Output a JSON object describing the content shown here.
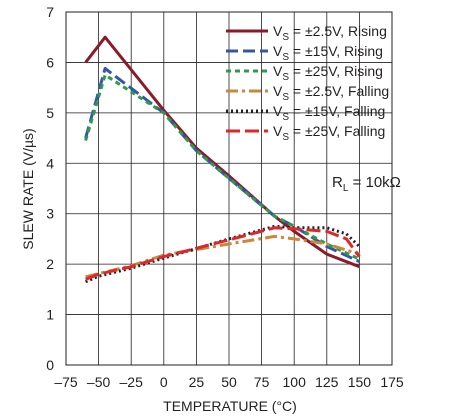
{
  "chart_data": {
    "type": "line",
    "xlabel": "TEMPERATURE (°C)",
    "ylabel": "SLEW RATE (V/µs)",
    "xlim": [
      -75,
      175
    ],
    "ylim": [
      0,
      7
    ],
    "xticks": [
      -75,
      -50,
      -25,
      0,
      25,
      50,
      75,
      100,
      125,
      150,
      175
    ],
    "yticks": [
      0,
      1,
      2,
      3,
      4,
      5,
      6,
      7
    ],
    "x_tick_labels": [
      "–75",
      "–50",
      "–25",
      "0",
      "25",
      "50",
      "75",
      "100",
      "125",
      "150",
      "175"
    ],
    "y_tick_labels": [
      "0",
      "1",
      "2",
      "3",
      "4",
      "5",
      "6",
      "7"
    ],
    "grid": true,
    "legend_position": "top-right",
    "annotation": {
      "prefix": "R",
      "sub": "L",
      "suffix": " = 10kΩ"
    },
    "series": [
      {
        "name": "VS = ±2.5V, Rising",
        "label": {
          "pre": "V",
          "sub": "S",
          "post": " = ±2.5V, Rising"
        },
        "color": "#8b1a2b",
        "dash": "",
        "width": 3,
        "x": [
          -60,
          -45,
          0,
          25,
          50,
          85,
          100,
          125,
          150
        ],
        "y": [
          6.0,
          6.5,
          5.05,
          4.3,
          3.75,
          2.95,
          2.65,
          2.2,
          1.95
        ]
      },
      {
        "name": "VS = ±15V, Rising",
        "label": {
          "pre": "V",
          "sub": "S",
          "post": " = ±15V, Rising"
        },
        "color": "#3555a8",
        "dash": "12,5",
        "width": 3,
        "x": [
          -60,
          -45,
          0,
          25,
          50,
          85,
          100,
          125,
          150
        ],
        "y": [
          4.5,
          5.88,
          5.0,
          4.25,
          3.7,
          2.95,
          2.75,
          2.35,
          2.05
        ]
      },
      {
        "name": "VS = ±25V, Rising",
        "label": {
          "pre": "V",
          "sub": "S",
          "post": " = ±25V, Rising"
        },
        "color": "#2e9b48",
        "dash": "5,4",
        "width": 3,
        "x": [
          -60,
          -45,
          0,
          25,
          50,
          85,
          100,
          125,
          150
        ],
        "y": [
          4.45,
          5.75,
          5.0,
          4.25,
          3.7,
          2.95,
          2.75,
          2.4,
          2.1
        ]
      },
      {
        "name": "VS = ±2.5V, Falling",
        "label": {
          "pre": "V",
          "sub": "S",
          "post": " = ±2.5V, Falling"
        },
        "color": "#c8893a",
        "dash": "12,4,3,4",
        "width": 3,
        "x": [
          -60,
          -25,
          0,
          50,
          85,
          100,
          125,
          150
        ],
        "y": [
          1.75,
          1.97,
          2.18,
          2.4,
          2.55,
          2.5,
          2.4,
          2.2
        ]
      },
      {
        "name": "VS = ±15V, Falling",
        "label": {
          "pre": "V",
          "sub": "S",
          "post": " = ±15V, Falling"
        },
        "color": "#231f20",
        "dash": "2,3",
        "width": 3,
        "x": [
          -60,
          -50,
          -25,
          0,
          50,
          85,
          100,
          125,
          140,
          150
        ],
        "y": [
          1.65,
          1.76,
          1.92,
          2.12,
          2.5,
          2.75,
          2.72,
          2.72,
          2.6,
          2.35
        ]
      },
      {
        "name": "VS = ±25V, Falling",
        "label": {
          "pre": "V",
          "sub": "S",
          "post": " = ±25V, Falling"
        },
        "color": "#e0262d",
        "dash": "14,5",
        "width": 3,
        "x": [
          -60,
          -50,
          -25,
          0,
          50,
          85,
          100,
          125,
          140,
          150
        ],
        "y": [
          1.7,
          1.8,
          1.95,
          2.15,
          2.48,
          2.72,
          2.7,
          2.65,
          2.5,
          2.15
        ]
      }
    ]
  }
}
